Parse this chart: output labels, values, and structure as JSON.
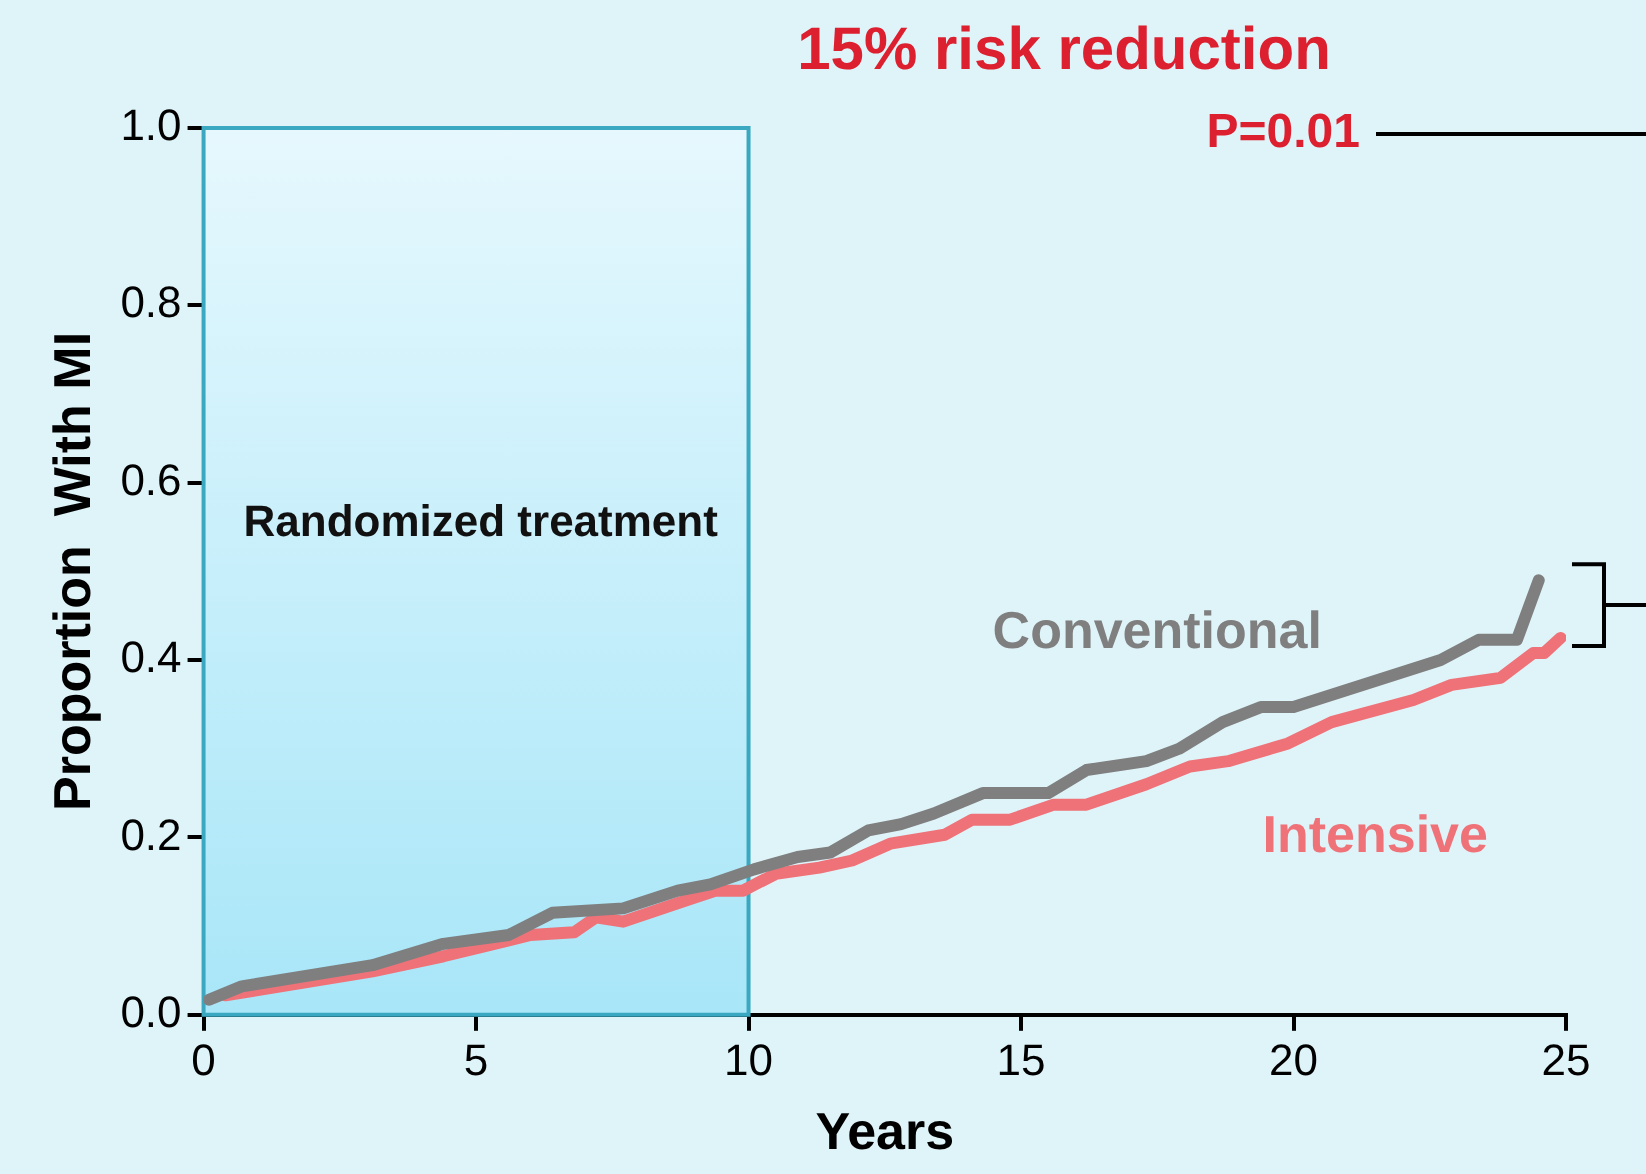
{
  "chart_data": {
    "type": "line",
    "title": "15% risk reduction",
    "xlabel": "Years",
    "ylabel": "Proportion  With MI",
    "annotations": [
      "P=0.01"
    ],
    "xlim": [
      0,
      25
    ],
    "xticks": [
      0,
      5,
      10,
      15,
      20,
      25
    ],
    "ylim": [
      0,
      1
    ],
    "yticks": [
      {
        "value": 0,
        "label": "0.0"
      },
      {
        "value": 0.2,
        "label": "0.2"
      },
      {
        "value": 0.4,
        "label": "0.4"
      },
      {
        "value": 0.6,
        "label": "0.6"
      },
      {
        "value": 0.8,
        "label": "0.8"
      },
      {
        "value": 1,
        "label": "1.0"
      }
    ],
    "grid": false,
    "legend": false,
    "marker": "none",
    "line_style": "solid",
    "bands": [
      {
        "axis": "x",
        "from": 0,
        "to": 10,
        "label": "Randomized treatment",
        "color": "#a8e6f8"
      }
    ],
    "series": [
      {
        "name": "Conventional",
        "color": "#7f7f7f",
        "x": [
          0.1,
          0.7,
          3.1,
          4.4,
          5.6,
          6.4,
          7.7,
          8.7,
          9.3,
          10.1,
          10.9,
          11.5,
          12.2,
          12.8,
          13.4,
          14.3,
          15.5,
          16.2,
          17.3,
          17.9,
          18.7,
          19.4,
          20.0,
          22.7,
          23.4,
          24.1,
          24.5
        ],
        "values": [
          0.017,
          0.032,
          0.056,
          0.08,
          0.09,
          0.115,
          0.12,
          0.14,
          0.147,
          0.164,
          0.178,
          0.183,
          0.208,
          0.215,
          0.227,
          0.25,
          0.25,
          0.276,
          0.286,
          0.3,
          0.33,
          0.347,
          0.347,
          0.4,
          0.423,
          0.423,
          0.49
        ]
      },
      {
        "name": "Intensive",
        "color": "#ef7279",
        "x": [
          0.4,
          3.1,
          4.4,
          5.2,
          6.0,
          6.8,
          7.2,
          7.7,
          8.9,
          9.4,
          9.9,
          10.5,
          11.3,
          11.9,
          12.6,
          13.6,
          14.1,
          14.8,
          15.6,
          16.2,
          17.3,
          18.1,
          18.8,
          19.9,
          20.7,
          22.2,
          22.9,
          23.8,
          24.4,
          24.6,
          24.9
        ],
        "values": [
          0.022,
          0.049,
          0.066,
          0.078,
          0.09,
          0.093,
          0.11,
          0.105,
          0.13,
          0.14,
          0.14,
          0.159,
          0.166,
          0.174,
          0.193,
          0.203,
          0.22,
          0.22,
          0.237,
          0.237,
          0.26,
          0.28,
          0.286,
          0.306,
          0.33,
          0.355,
          0.372,
          0.38,
          0.408,
          0.408,
          0.425
        ]
      }
    ]
  }
}
